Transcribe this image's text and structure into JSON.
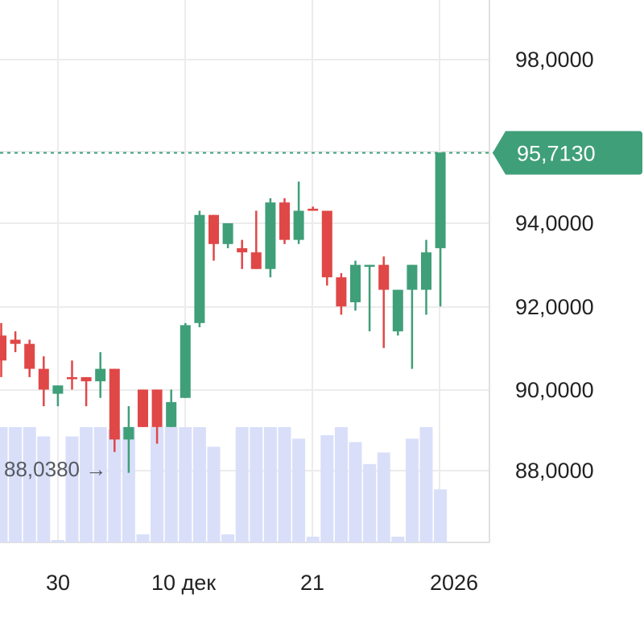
{
  "chart_data": {
    "type": "candlestick",
    "y_ticks": [
      "98,0000",
      "94,0000",
      "92,0000",
      "90,0000",
      "88,0000"
    ],
    "x_ticks": [
      {
        "label": "30",
        "index": 3
      },
      {
        "label": "10 дек",
        "index": 10
      },
      {
        "label": "21",
        "index": 19
      },
      {
        "label": "2026",
        "index": 29
      }
    ],
    "ylim": [
      86.0,
      99.3
    ],
    "current_price": {
      "value": 95.713,
      "label": "95,7130"
    },
    "min_marker": {
      "value": 88.038,
      "label": "88,0380 →",
      "index": 8
    },
    "colors": {
      "up": "#3f9f79",
      "down": "#e04747",
      "volume": "#d9dff9",
      "grid": "#ececec",
      "price_tag": "#3f9f79"
    },
    "candles": [
      {
        "o": 91.3,
        "h": 91.6,
        "l": 90.3,
        "c": 90.7
      },
      {
        "o": 91.2,
        "h": 91.4,
        "l": 90.9,
        "c": 91.1
      },
      {
        "o": 91.1,
        "h": 91.2,
        "l": 90.3,
        "c": 90.5
      },
      {
        "o": 90.5,
        "h": 90.8,
        "l": 89.6,
        "c": 90.0
      },
      {
        "o": 89.9,
        "h": 90.1,
        "l": 89.6,
        "c": 90.1
      },
      {
        "o": 90.3,
        "h": 90.7,
        "l": 90.0,
        "c": 90.25
      },
      {
        "o": 90.3,
        "h": 90.3,
        "l": 89.6,
        "c": 90.2
      },
      {
        "o": 90.2,
        "h": 90.9,
        "l": 89.8,
        "c": 90.5
      },
      {
        "o": 90.5,
        "h": 90.5,
        "l": 88.5,
        "c": 88.8
      },
      {
        "o": 88.8,
        "h": 89.6,
        "l": 88.0,
        "c": 89.1
      },
      {
        "o": 90.0,
        "h": 90.0,
        "l": 89.1,
        "c": 89.1
      },
      {
        "o": 90.0,
        "h": 90.0,
        "l": 88.7,
        "c": 89.1
      },
      {
        "o": 89.1,
        "h": 90.0,
        "l": 89.1,
        "c": 89.7
      },
      {
        "o": 89.8,
        "h": 91.6,
        "l": 89.8,
        "c": 91.55
      },
      {
        "o": 91.6,
        "h": 94.3,
        "l": 91.5,
        "c": 94.2
      },
      {
        "o": 94.2,
        "h": 94.2,
        "l": 93.1,
        "c": 93.5
      },
      {
        "o": 93.5,
        "h": 94.0,
        "l": 93.4,
        "c": 94.0
      },
      {
        "o": 93.4,
        "h": 93.6,
        "l": 92.9,
        "c": 93.3
      },
      {
        "o": 93.3,
        "h": 94.3,
        "l": 92.9,
        "c": 92.9
      },
      {
        "o": 92.9,
        "h": 94.6,
        "l": 92.7,
        "c": 94.5
      },
      {
        "o": 94.5,
        "h": 94.6,
        "l": 93.5,
        "c": 93.6
      },
      {
        "o": 93.6,
        "h": 95.0,
        "l": 93.5,
        "c": 94.3
      },
      {
        "o": 94.35,
        "h": 94.4,
        "l": 94.3,
        "c": 94.3
      },
      {
        "o": 94.3,
        "h": 94.3,
        "l": 92.5,
        "c": 92.7
      },
      {
        "o": 92.7,
        "h": 92.8,
        "l": 91.8,
        "c": 92.0
      },
      {
        "o": 92.1,
        "h": 93.1,
        "l": 91.9,
        "c": 93.0
      },
      {
        "o": 93.0,
        "h": 93.0,
        "l": 91.4,
        "c": 93.0
      },
      {
        "o": 93.0,
        "h": 93.2,
        "l": 91.0,
        "c": 92.4
      },
      {
        "o": 91.4,
        "h": 92.4,
        "l": 91.3,
        "c": 92.4
      },
      {
        "o": 92.4,
        "h": 93.0,
        "l": 90.5,
        "c": 93.0
      }
    ],
    "extra_candles": [
      {
        "o": 92.4,
        "h": 93.6,
        "l": 91.8,
        "c": 93.3
      },
      {
        "o": 93.4,
        "h": 95.7,
        "l": 92.0,
        "c": 95.7
      }
    ],
    "volume": [
      1.0,
      1.0,
      1.0,
      0.92,
      0.0,
      0.92,
      1.0,
      1.0,
      0.98,
      1.0,
      0.07,
      1.0,
      1.0,
      1.0,
      1.0,
      0.83,
      0.07,
      1.0,
      1.0,
      1.0,
      1.0,
      0.9,
      0.05,
      0.93,
      1.0,
      0.87,
      0.68,
      0.78,
      0.05,
      0.9,
      1.0,
      0.46
    ]
  }
}
